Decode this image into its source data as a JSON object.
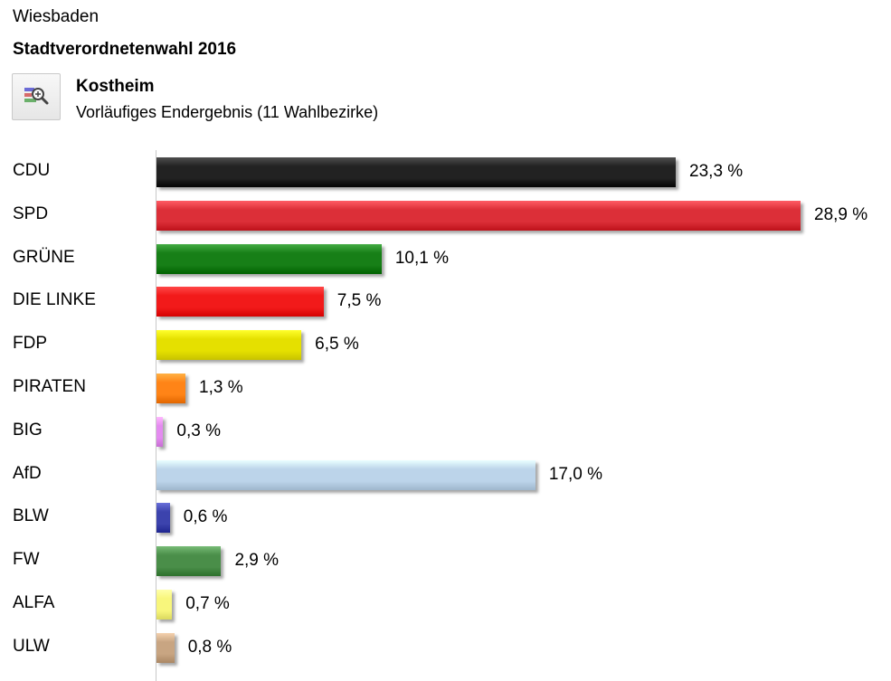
{
  "header": {
    "city": "Wiesbaden",
    "election": "Stadtverordnetenwahl 2016",
    "district": "Kostheim",
    "status": "Vorläufiges Endergebnis (11 Wahlbezirke)",
    "zoom_icon": "zoom-chart-icon"
  },
  "chart_data": {
    "type": "bar",
    "orientation": "horizontal",
    "categories": [
      "CDU",
      "SPD",
      "GRÜNE",
      "DIE LINKE",
      "FDP",
      "PIRATEN",
      "BIG",
      "AfD",
      "BLW",
      "FW",
      "ALFA",
      "ULW"
    ],
    "values": [
      23.3,
      28.9,
      10.1,
      7.5,
      6.5,
      1.3,
      0.3,
      17.0,
      0.6,
      2.9,
      0.7,
      0.8
    ],
    "value_labels": [
      "23,3 %",
      "28,9 %",
      "10,1 %",
      "7,5 %",
      "6,5 %",
      "1,3 %",
      "0,3 %",
      "17,0 %",
      "0,6 %",
      "2,9 %",
      "0,7 %",
      "0,8 %"
    ],
    "colors": [
      "#222222",
      "#dc2f38",
      "#177f17",
      "#f21a1a",
      "#e5e000",
      "#ff8417",
      "#e48bf0",
      "#bcd4ea",
      "#3c43ad",
      "#4a8e49",
      "#f8f67c",
      "#c8a582"
    ],
    "title": "",
    "xlabel": "",
    "ylabel": "",
    "xlim": [
      0,
      28.9
    ],
    "grid": false,
    "legend": "none"
  }
}
